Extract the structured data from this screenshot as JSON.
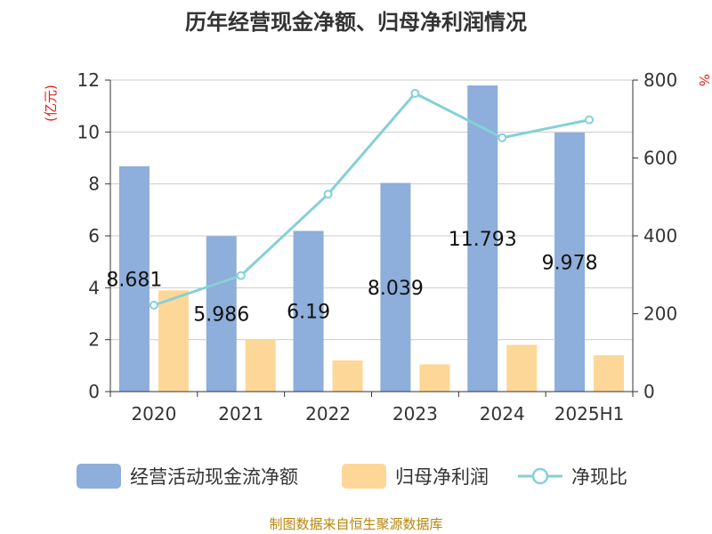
{
  "title": "历年经营现金净额、归母净利润情况",
  "source": "制图数据来自恒生聚源数据库",
  "chart_data": {
    "type": "bar",
    "categories": [
      "2020",
      "2021",
      "2022",
      "2023",
      "2024",
      "2025H1"
    ],
    "series": [
      {
        "name": "经营活动现金流净额",
        "type": "bar",
        "axis": "left",
        "color": "#8eaedb",
        "values": [
          8.681,
          5.986,
          6.19,
          8.039,
          11.793,
          9.978
        ],
        "labels": [
          "8.681",
          "5.986",
          "6.19",
          "8.039",
          "11.793",
          "9.978"
        ]
      },
      {
        "name": "归母净利润",
        "type": "bar",
        "axis": "left",
        "color": "#fdd797",
        "values": [
          3.9,
          2.0,
          1.2,
          1.05,
          1.8,
          1.4
        ]
      },
      {
        "name": "净现比",
        "type": "line",
        "axis": "right",
        "color": "#86d0d6",
        "values": [
          222,
          298,
          507,
          766,
          652,
          698
        ]
      }
    ],
    "y_left": {
      "label": "(亿元)",
      "ylim": [
        0,
        12
      ],
      "ticks": [
        0,
        2,
        4,
        6,
        8,
        10,
        12
      ]
    },
    "y_right": {
      "label": "%",
      "ylim": [
        0,
        800
      ],
      "ticks": [
        0,
        200,
        400,
        600,
        800
      ]
    },
    "grid": true,
    "legend_position": "bottom"
  }
}
